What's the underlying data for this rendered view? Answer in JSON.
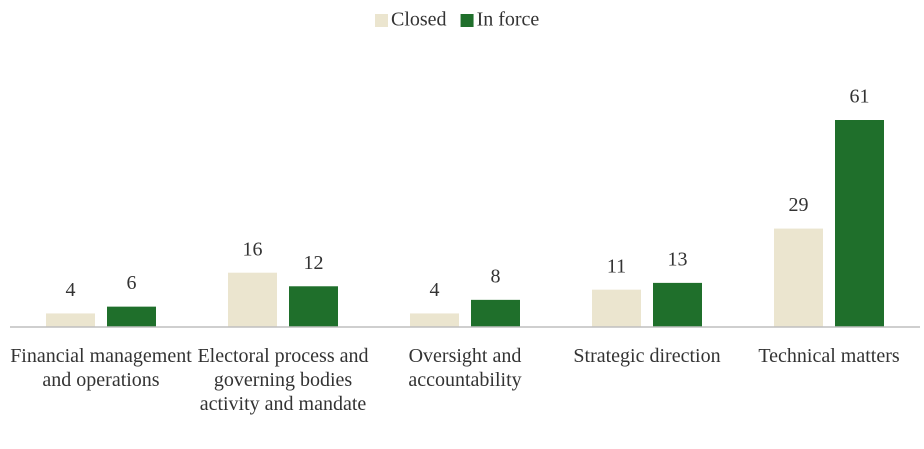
{
  "chart_data": {
    "type": "bar",
    "categories": [
      "Financial management and operations",
      "Electoral process and governing bodies activity and mandate",
      "Oversight and accountability",
      "Strategic direction",
      "Technical matters"
    ],
    "series": [
      {
        "name": "Closed",
        "color": "#ebe5cf",
        "values": [
          4,
          16,
          4,
          11,
          29
        ]
      },
      {
        "name": "In force",
        "color": "#1f6f2b",
        "values": [
          6,
          12,
          8,
          13,
          61
        ]
      }
    ],
    "legend": "top"
  }
}
